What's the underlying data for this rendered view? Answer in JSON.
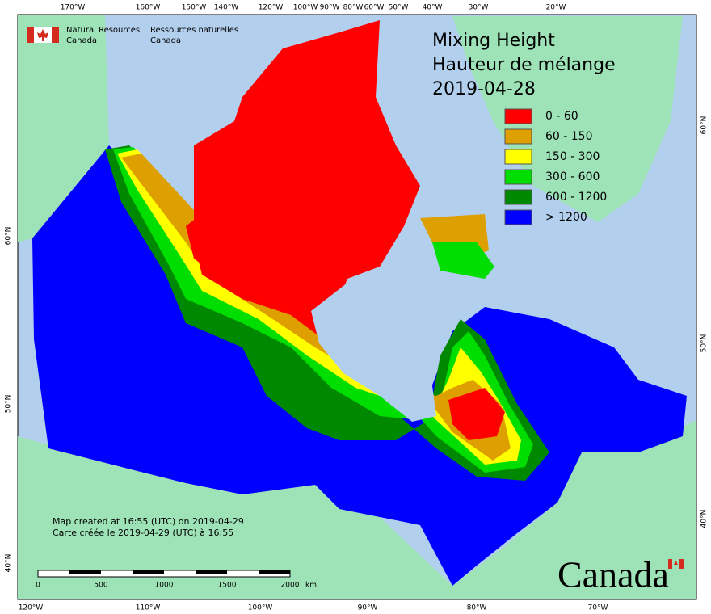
{
  "header": {
    "agency_en": "Natural Resources",
    "country_en": "Canada",
    "agency_fr": "Ressources naturelles",
    "country_fr": "Canada"
  },
  "title": {
    "line1": "Mixing Height",
    "line2": "Hauteur de mélange",
    "date": "2019-04-28"
  },
  "legend": [
    {
      "label": "0 - 60",
      "color": "#ff0000"
    },
    {
      "label": "60 - 150",
      "color": "#dda000"
    },
    {
      "label": "150 - 300",
      "color": "#ffff00"
    },
    {
      "label": "300 - 600",
      "color": "#00dd00"
    },
    {
      "label": "600 - 1200",
      "color": "#008800"
    },
    {
      "label": "> 1200",
      "color": "#0000ff"
    }
  ],
  "top_axis_labels": [
    "170°W",
    "160°W",
    "150°W",
    "140°W",
    "120°W",
    "100°W",
    "90°W",
    "80°W",
    "60°W",
    "50°W",
    "40°W",
    "30°W",
    "20°W"
  ],
  "bottom_axis_labels": [
    "120°W",
    "110°W",
    "100°W",
    "90°W",
    "80°W",
    "70°W"
  ],
  "left_axis_labels": [
    "60°N",
    "50°N",
    "40°N"
  ],
  "right_axis_labels": [
    "60°N",
    "50°N",
    "40°N"
  ],
  "credits": {
    "line1": "Map created at 16:55 (UTC) on 2019-04-29",
    "line2": "Carte créée le 2019-04-29 (UTC) à 16:55"
  },
  "scale_bar": {
    "labels": [
      "0",
      "500",
      "1000",
      "1500",
      "2000"
    ],
    "unit": "km"
  },
  "wordmark": "Canada"
}
